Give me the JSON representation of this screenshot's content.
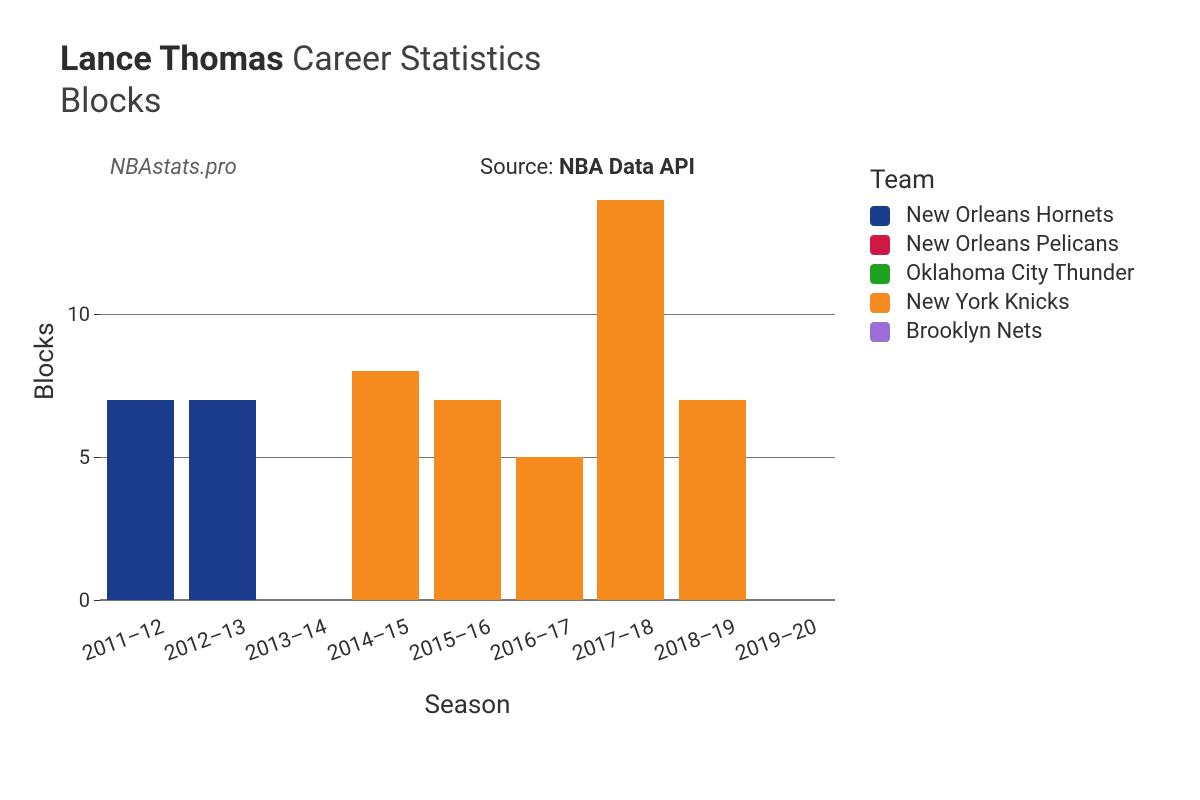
{
  "title": {
    "player": "Lance Thomas",
    "rest": "Career Statistics",
    "stat": "Blocks"
  },
  "credit": "NBAstats.pro",
  "source": {
    "prefix": "Source: ",
    "value": "NBA Data API"
  },
  "chart": {
    "type": "bar",
    "ylabel": "Blocks",
    "xlabel": "Season",
    "ylim": [
      0,
      14
    ],
    "yticks": [
      0,
      5,
      10
    ],
    "grid_color": "#777777",
    "background_color": "#ffffff",
    "bar_width_ratio": 0.82,
    "categories": [
      "2011–12",
      "2012–13",
      "2013–14",
      "2014–15",
      "2015–16",
      "2016–17",
      "2017–18",
      "2018–19",
      "2019–20"
    ],
    "values": [
      7,
      7,
      0,
      8,
      7,
      5,
      14,
      7,
      0
    ],
    "bar_colors": [
      "#1b3b8c",
      "#1b3b8c",
      "#d01846",
      "#f58a1f",
      "#f58a1f",
      "#f58a1f",
      "#f58a1f",
      "#f58a1f",
      "#9a6dd7"
    ],
    "xtick_rotation_deg": -20,
    "tick_fontsize": 20,
    "axis_title_fontsize": 26
  },
  "legend": {
    "title": "Team",
    "items": [
      {
        "label": "New Orleans Hornets",
        "color": "#1b3b8c"
      },
      {
        "label": "New Orleans Pelicans",
        "color": "#d01846"
      },
      {
        "label": "Oklahoma City Thunder",
        "color": "#1fa31f"
      },
      {
        "label": "New York Knicks",
        "color": "#f58a1f"
      },
      {
        "label": "Brooklyn Nets",
        "color": "#9a6dd7"
      }
    ]
  }
}
